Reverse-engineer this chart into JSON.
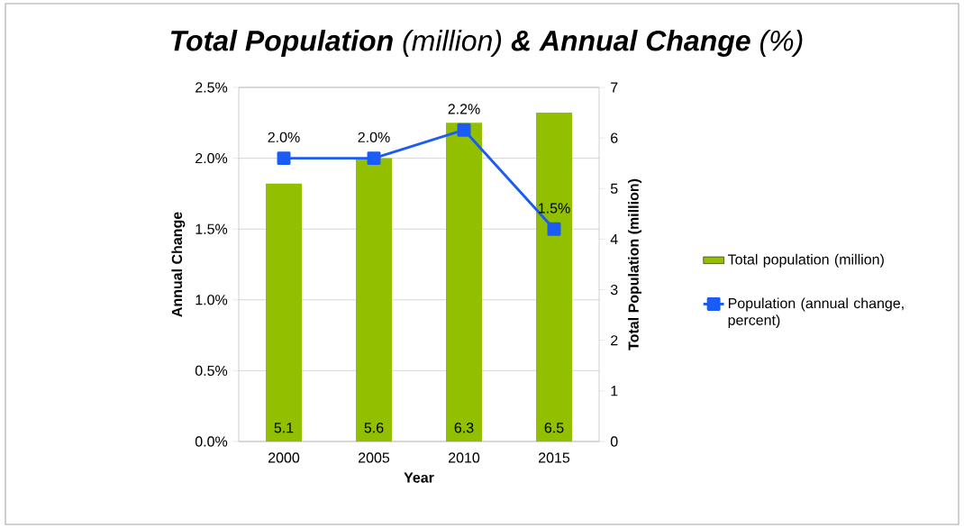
{
  "chart_data": {
    "type": "bar",
    "title": "**Total Population** (million) **& Annual Change** (%)",
    "categories": [
      "2000",
      "2005",
      "2010",
      "2015"
    ],
    "xlabel": "Year",
    "ylabel": "Annual Change",
    "y2label": "Total Population (million)",
    "series": [
      {
        "name": "Total population (million)",
        "axis": "y2",
        "color": "#92c000",
        "values": [
          5.1,
          5.6,
          6.3,
          6.5
        ],
        "value_labels": [
          "5.1",
          "5.6",
          "6.3",
          "6.5"
        ]
      },
      {
        "name": "Population (annual change, percent)",
        "type": "line",
        "color": "#1a5cf5",
        "marker": "square",
        "line_style": "solid",
        "values": [
          2.0,
          2.0,
          2.2,
          1.5
        ],
        "value_labels": [
          "2.0%",
          "2.0%",
          "2.2%",
          "1.5%"
        ]
      }
    ],
    "ylim": [
      0,
      2.5
    ],
    "yticks": [
      {
        "value": 0,
        "label": "0.0%"
      },
      {
        "value": 0.5,
        "label": "0.5%"
      },
      {
        "value": 1.0,
        "label": "1.0%"
      },
      {
        "value": 1.5,
        "label": "1.5%"
      },
      {
        "value": 2.0,
        "label": "2.0%"
      },
      {
        "value": 2.5,
        "label": "2.5%"
      }
    ],
    "y2lim": [
      0,
      7
    ],
    "y2ticks": [
      0,
      1,
      2,
      3,
      4,
      5,
      6,
      7
    ],
    "grid": "y",
    "legend": "right"
  }
}
